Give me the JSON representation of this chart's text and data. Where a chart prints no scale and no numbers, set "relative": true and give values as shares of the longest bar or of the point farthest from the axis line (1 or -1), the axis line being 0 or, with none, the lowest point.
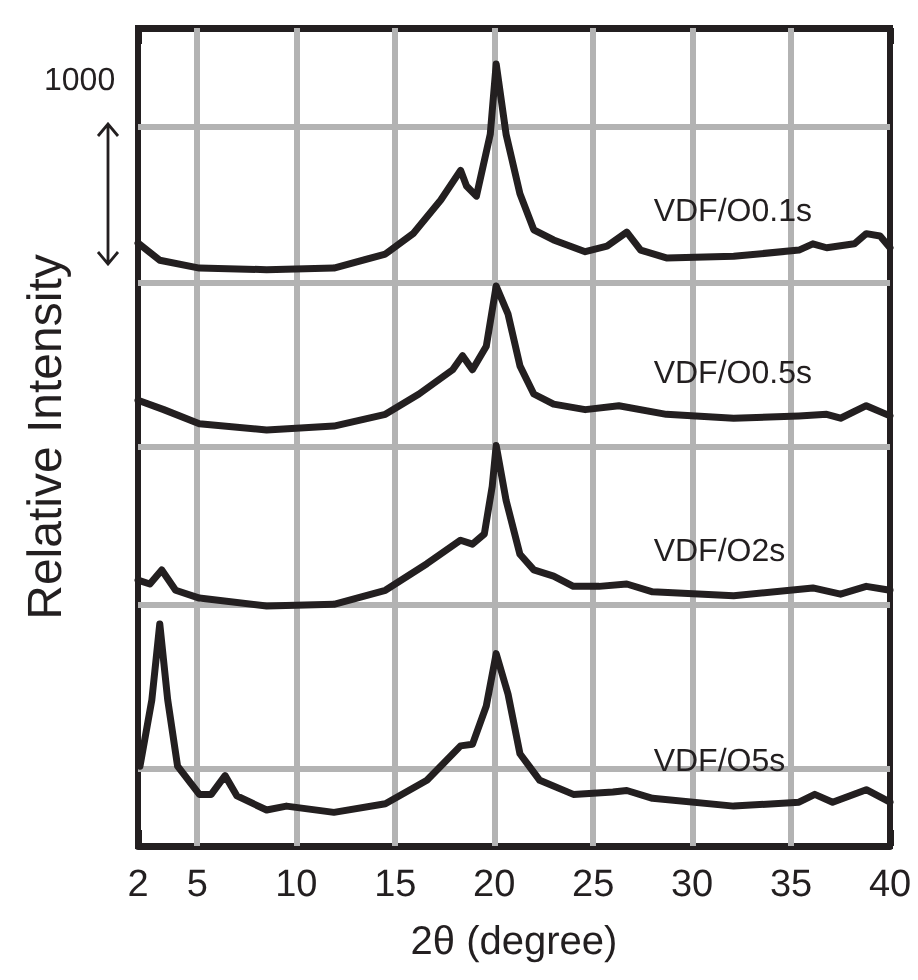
{
  "chart_data": {
    "type": "line",
    "relative": true,
    "xlabel": "2θ (degree)",
    "ylabel": "Relative Intensity",
    "annotations": [
      "1000"
    ],
    "xlim": [
      2,
      40
    ],
    "xticks": [
      2,
      5,
      10,
      15,
      20,
      25,
      30,
      35,
      40
    ],
    "grid": "x",
    "legend": false,
    "marker": "none",
    "line_style": "solid",
    "ref_lines": [
      {
        "axis": "y",
        "value": 0.92,
        "color": "#b3b3b3"
      },
      {
        "axis": "y",
        "value": 0.72,
        "color": "#b3b3b3"
      },
      {
        "axis": "y",
        "value": 0.51,
        "color": "#b3b3b3"
      },
      {
        "axis": "y",
        "value": 0.31,
        "color": "#b3b3b3"
      },
      {
        "axis": "y",
        "value": 0.1,
        "color": "#b3b3b3"
      }
    ],
    "series": [
      {
        "name": "VDF/O0.1s",
        "color": "#231f20",
        "x": [
          2,
          3.1,
          5.1,
          8.5,
          11.9,
          14.5,
          15.9,
          17.3,
          18.3,
          18.6,
          19.1,
          19.8,
          20.1,
          20.6,
          21.3,
          22,
          23,
          24.6,
          25.7,
          26.7,
          27.4,
          28.7,
          32.1,
          35.4,
          36.1,
          36.8,
          38.2,
          38.8,
          39.5,
          40
        ],
        "values": [
          0.771,
          0.749,
          0.739,
          0.737,
          0.739,
          0.757,
          0.783,
          0.826,
          0.864,
          0.844,
          0.831,
          0.91,
          1,
          0.91,
          0.834,
          0.788,
          0.775,
          0.76,
          0.767,
          0.785,
          0.762,
          0.752,
          0.754,
          0.762,
          0.77,
          0.765,
          0.77,
          0.783,
          0.78,
          0.765
        ]
      },
      {
        "name": "VDF/O0.5s",
        "color": "#231f20",
        "x": [
          2,
          3.3,
          5.1,
          8.5,
          11.9,
          14.5,
          16.2,
          17.9,
          18.4,
          18.9,
          19.6,
          20.1,
          20.7,
          21.3,
          22,
          23,
          24.6,
          26.3,
          28.7,
          32.1,
          35.4,
          36.8,
          37.5,
          38.8,
          40
        ],
        "values": [
          0.57,
          0.558,
          0.54,
          0.532,
          0.537,
          0.552,
          0.578,
          0.609,
          0.627,
          0.609,
          0.639,
          0.716,
          0.68,
          0.614,
          0.578,
          0.565,
          0.558,
          0.563,
          0.552,
          0.547,
          0.55,
          0.552,
          0.547,
          0.563,
          0.55
        ]
      },
      {
        "name": "VDF/O2s",
        "color": "#231f20",
        "x": [
          2,
          2.6,
          3.2,
          3.9,
          5.1,
          8.5,
          11.9,
          14.5,
          16.6,
          18.3,
          18.9,
          19.5,
          19.9,
          20.1,
          20.6,
          21.3,
          22,
          23,
          24,
          25.3,
          26.7,
          28,
          32.1,
          36.1,
          37.5,
          38.8,
          40
        ],
        "values": [
          0.34,
          0.335,
          0.353,
          0.327,
          0.317,
          0.307,
          0.309,
          0.327,
          0.361,
          0.391,
          0.386,
          0.399,
          0.46,
          0.512,
          0.442,
          0.373,
          0.353,
          0.345,
          0.332,
          0.332,
          0.335,
          0.325,
          0.32,
          0.33,
          0.322,
          0.332,
          0.327
        ]
      },
      {
        "name": "VDF/O5s",
        "color": "#231f20",
        "x": [
          2.1,
          2.7,
          3.1,
          3.5,
          4,
          5.1,
          5.7,
          6.4,
          7,
          8.5,
          9.5,
          11.9,
          14.5,
          16.6,
          18.3,
          18.9,
          19.6,
          20.1,
          20.7,
          21.3,
          22.3,
          24,
          26,
          26.7,
          28,
          32.1,
          35.4,
          36.2,
          37.1,
          38.8,
          40
        ],
        "values": [
          0.102,
          0.187,
          0.284,
          0.187,
          0.102,
          0.066,
          0.066,
          0.09,
          0.064,
          0.046,
          0.051,
          0.043,
          0.054,
          0.084,
          0.128,
          0.13,
          0.179,
          0.246,
          0.194,
          0.118,
          0.084,
          0.066,
          0.069,
          0.071,
          0.061,
          0.051,
          0.056,
          0.066,
          0.056,
          0.072,
          0.056
        ]
      }
    ]
  }
}
